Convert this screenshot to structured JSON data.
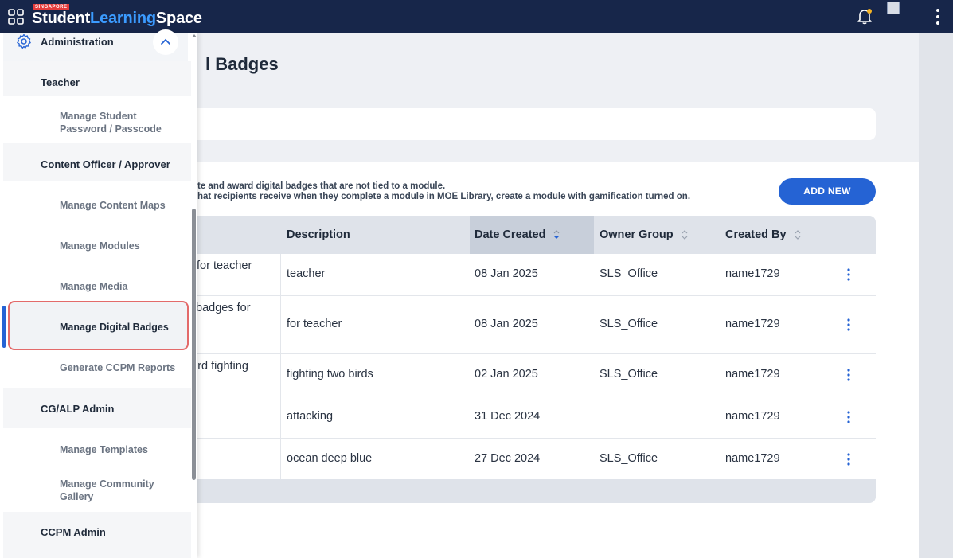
{
  "app": {
    "brand_tag": "SINGAPORE",
    "brand_word1": "Student",
    "brand_word2": "Learning",
    "brand_word3": "Space"
  },
  "page": {
    "title": "l Badges",
    "info_line1": "te and award digital badges that are not tied to a module.",
    "info_line2": "hat recipients receive when they complete a module in MOE Library, create a module with gamification turned on.",
    "add_new_label": "ADD NEW"
  },
  "table": {
    "headers": {
      "description": "Description",
      "date_created": "Date Created",
      "owner_group": "Owner Group",
      "created_by": "Created By"
    },
    "rows": [
      {
        "name": "for teacher",
        "description": "teacher",
        "date": "08 Jan 2025",
        "owner": "SLS_Office",
        "creator": "name1729"
      },
      {
        "name": "badges for",
        "description": "for teacher",
        "date": "08 Jan 2025",
        "owner": "SLS_Office",
        "creator": "name1729"
      },
      {
        "name": "ird fighting",
        "description": "fighting two birds",
        "date": "02 Jan 2025",
        "owner": "SLS_Office",
        "creator": "name1729"
      },
      {
        "name": "",
        "description": "attacking",
        "date": "31 Dec 2024",
        "owner": "",
        "creator": "name1729"
      },
      {
        "name": "",
        "description": "ocean deep blue",
        "date": "27 Dec 2024",
        "owner": "SLS_Office",
        "creator": "name1729"
      }
    ]
  },
  "sidebar": {
    "admin_label": "Administration",
    "sections": [
      {
        "label": "Teacher",
        "items": [
          "Manage Student Password / Passcode"
        ]
      },
      {
        "label": "Content Officer / Approver",
        "items": [
          "Manage Content Maps",
          "Manage Modules",
          "Manage Media",
          "Manage Digital Badges",
          "Generate CCPM Reports"
        ]
      },
      {
        "label": "CG/ALP Admin",
        "items": [
          "Manage Templates",
          "Manage Community Gallery"
        ]
      },
      {
        "label": "CCPM Admin",
        "items": []
      }
    ]
  },
  "colors": {
    "topbar": "#17264a",
    "accent": "#2563d4",
    "brand_highlight": "#3b9bff",
    "active_outline": "#e36a6a"
  }
}
